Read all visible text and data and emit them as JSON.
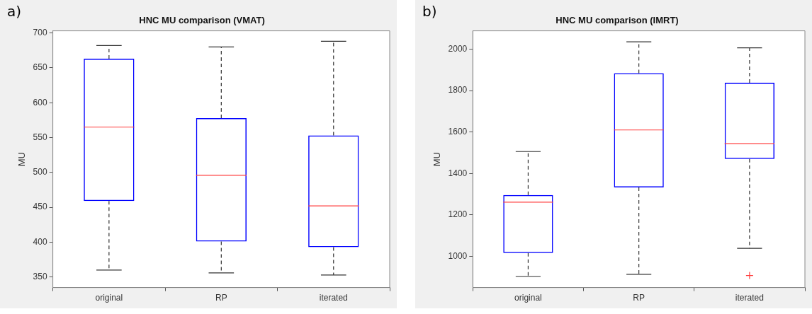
{
  "chart_data": [
    {
      "type": "box",
      "title": "HNC MU comparison (VMAT)",
      "ylabel": "MU",
      "annotations": [
        "a)"
      ],
      "categories": [
        "original",
        "RP",
        "iterated"
      ],
      "ylim": [
        335,
        703
      ],
      "yticks": [
        350,
        400,
        450,
        500,
        550,
        600,
        650,
        700
      ],
      "series": [
        {
          "color": "#0000ff",
          "boxes": [
            {
              "low": 360,
              "q1": 459,
              "median": 565,
              "q3": 663,
              "high": 682
            },
            {
              "low": 356,
              "q1": 401,
              "median": 496,
              "q3": 578,
              "high": 680
            },
            {
              "low": 353,
              "q1": 393,
              "median": 452,
              "q3": 553,
              "high": 688
            }
          ]
        }
      ]
    },
    {
      "type": "box",
      "title": "HNC MU comparison (IMRT)",
      "ylabel": "MU",
      "annotations": [
        "b)"
      ],
      "categories": [
        "original",
        "RP",
        "iterated"
      ],
      "ylim": [
        850,
        2088
      ],
      "yticks": [
        1000,
        1200,
        1400,
        1600,
        1800,
        2000
      ],
      "series": [
        {
          "color": "#0000ff",
          "boxes": [
            {
              "low": 904,
              "q1": 1017,
              "median": 1262,
              "q3": 1296,
              "high": 1506
            },
            {
              "low": 914,
              "q1": 1333,
              "median": 1610,
              "q3": 1884,
              "high": 2035
            },
            {
              "low": 1039,
              "q1": 1470,
              "median": 1544,
              "q3": 1838,
              "high": 2006,
              "outliers": [
                908
              ]
            }
          ]
        }
      ]
    }
  ]
}
